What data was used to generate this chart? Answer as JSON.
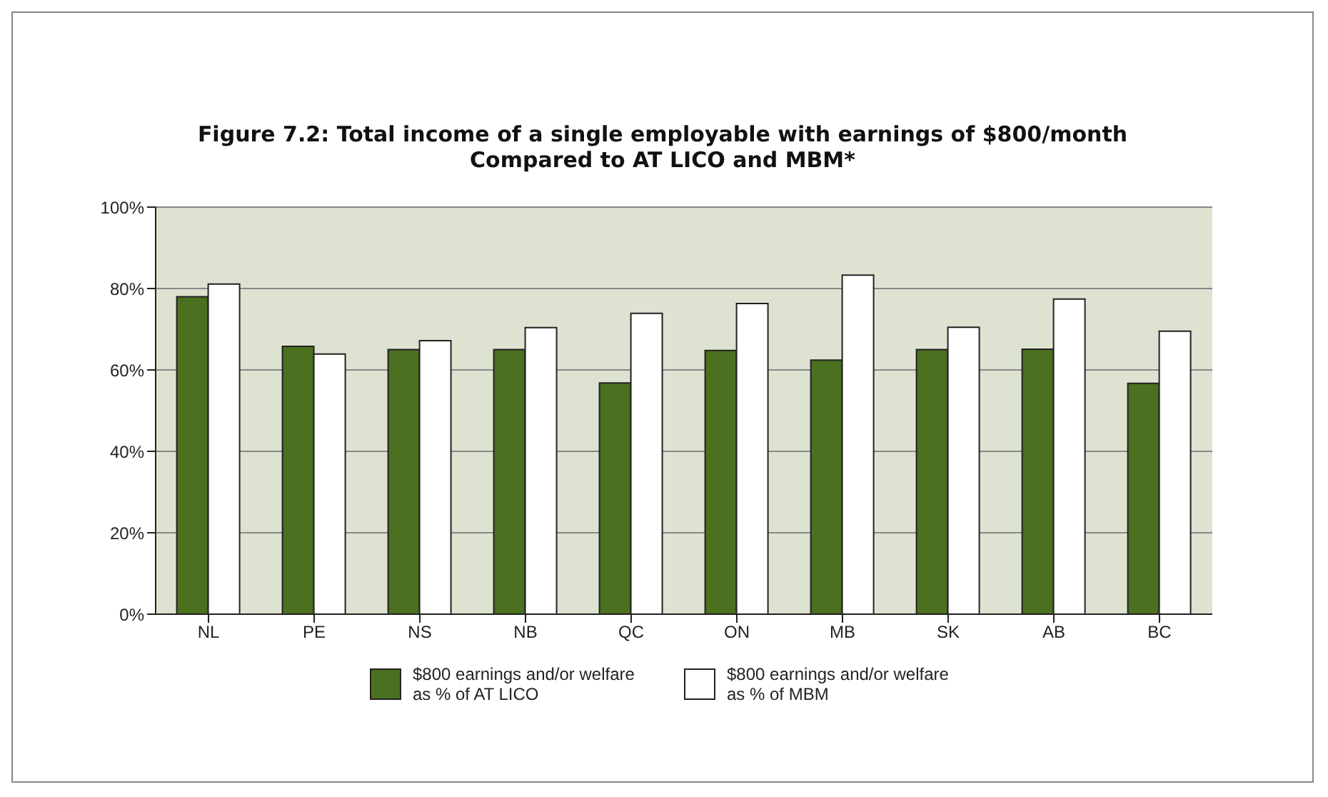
{
  "chart_data": {
    "type": "bar",
    "title": "Figure 7.2: Total income of a single employable with earnings of $800/month\nCompared to AT LICO and MBM*",
    "categories": [
      "NL",
      "PE",
      "NS",
      "NB",
      "QC",
      "ON",
      "MB",
      "SK",
      "AB",
      "BC"
    ],
    "series": [
      {
        "name": "$800 earnings and/or welfare as % of AT LICO",
        "color": "#4a7020",
        "values": [
          78,
          65.8,
          65,
          65,
          56.8,
          64.8,
          62.4,
          65,
          65.1,
          56.7
        ]
      },
      {
        "name": "$800 earnings and/or welfare as % of MBM",
        "color": "#ffffff",
        "values": [
          81.1,
          63.9,
          67.2,
          70.4,
          73.9,
          76.3,
          83.3,
          70.5,
          77.4,
          69.5
        ]
      }
    ],
    "ylim": [
      0,
      100
    ],
    "yticks": [
      {
        "value": 0,
        "label": "0%"
      },
      {
        "value": 20,
        "label": "20%"
      },
      {
        "value": 40,
        "label": "40%"
      },
      {
        "value": 60,
        "label": "60%"
      },
      {
        "value": 80,
        "label": "80%"
      },
      {
        "value": 100,
        "label": "100%"
      }
    ],
    "grid": "y",
    "legend": "bottom"
  }
}
